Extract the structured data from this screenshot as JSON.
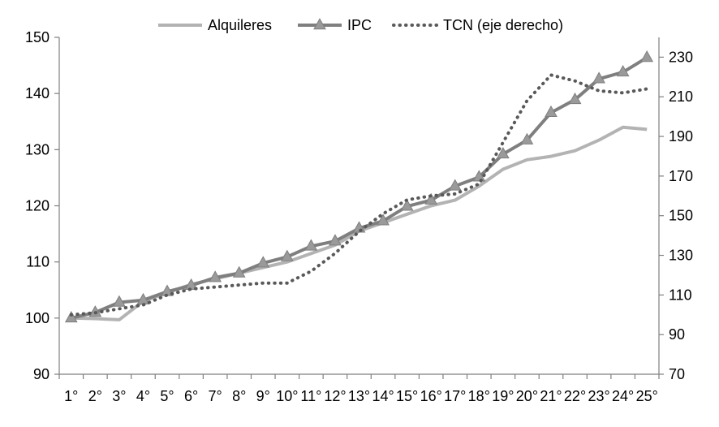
{
  "chart_data": {
    "type": "line",
    "title": "",
    "xlabel": "",
    "ylabel": "",
    "categories": [
      "1°",
      "2°",
      "3°",
      "4°",
      "5°",
      "6°",
      "7°",
      "8°",
      "9°",
      "10°",
      "11°",
      "12°",
      "13°",
      "14°",
      "15°",
      "16°",
      "17°",
      "18°",
      "19°",
      "20°",
      "21°",
      "22°",
      "23°",
      "24°",
      "25°"
    ],
    "ylim": [
      90,
      150
    ],
    "yticks": [
      90,
      100,
      110,
      120,
      130,
      140,
      150
    ],
    "y2lim": [
      70,
      240
    ],
    "y2ticks": [
      70,
      90,
      110,
      130,
      150,
      170,
      190,
      210,
      230
    ],
    "legend_position": "top",
    "grid": false,
    "series": [
      {
        "name": "Alquileres",
        "axis": "left",
        "style": "solid",
        "color": "#b3b3b3",
        "values": [
          100,
          99.9,
          99.7,
          103.0,
          104.5,
          106.0,
          107.0,
          108.0,
          109.0,
          110.0,
          111.5,
          113.0,
          115.5,
          117.0,
          118.5,
          120.0,
          121.0,
          123.5,
          126.5,
          128.2,
          128.8,
          129.8,
          131.7,
          134.0,
          133.6
        ]
      },
      {
        "name": "IPC",
        "axis": "left",
        "style": "solid-triangle-markers",
        "color": "#7f7f7f",
        "values": [
          100,
          101.0,
          102.8,
          103.2,
          104.7,
          105.8,
          107.2,
          108.0,
          109.8,
          110.9,
          112.8,
          113.7,
          116.0,
          117.3,
          119.9,
          121.0,
          123.5,
          125.1,
          129.2,
          131.7,
          136.6,
          138.9,
          142.6,
          143.8,
          146.4
        ]
      },
      {
        "name": "TCN (eje derecho)",
        "axis": "right",
        "style": "dotted",
        "color": "#595959",
        "values": [
          100,
          101,
          103,
          105,
          110,
          113,
          114,
          115,
          116,
          116,
          122,
          131,
          142,
          151,
          158,
          160,
          161,
          166,
          187,
          208,
          221,
          218,
          213,
          212,
          214
        ]
      }
    ]
  }
}
